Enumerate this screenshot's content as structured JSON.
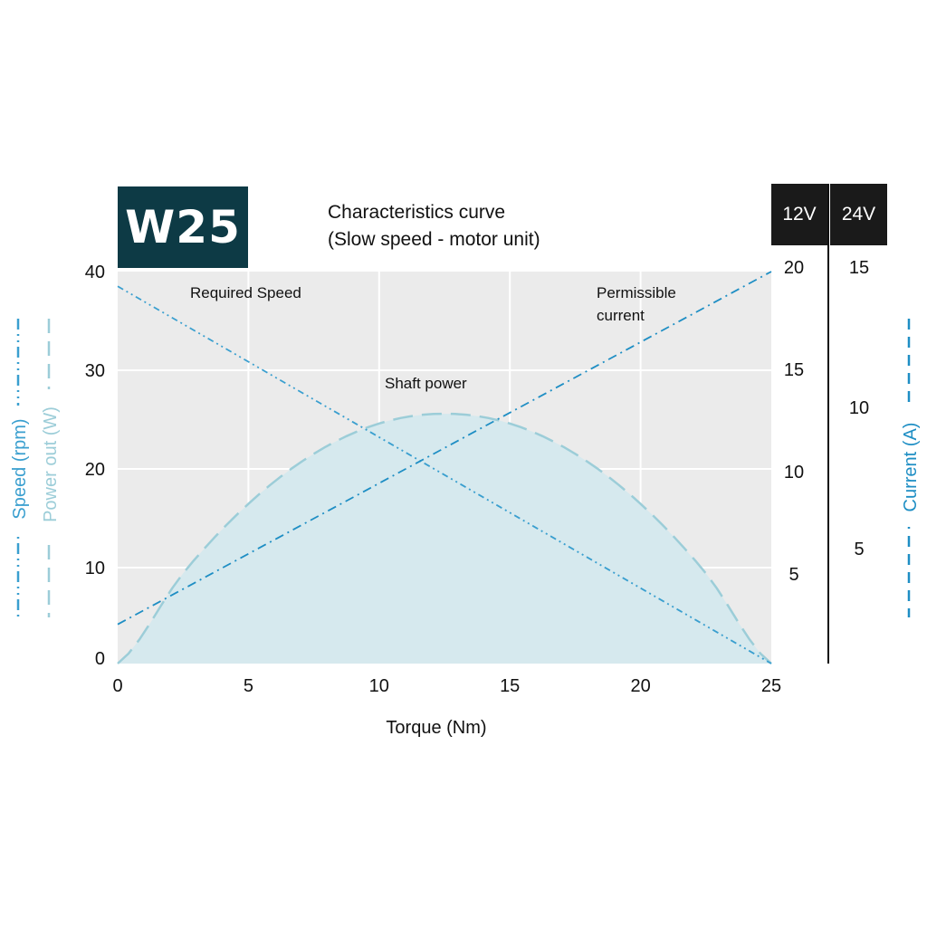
{
  "badge": "W25",
  "title_line1": "Characteristics curve",
  "title_line2": "(Slow speed - motor unit)",
  "voltage_headers": [
    "12V",
    "24V"
  ],
  "colors": {
    "speed": "#3a9fcf",
    "power": "#9ccdd8",
    "power_fill": "#d6e9ee",
    "current": "#1e8ec4",
    "plot_bg": "#ebebeb",
    "badge_bg": "#0d3a45"
  },
  "chart_data": {
    "type": "line",
    "title": "Characteristics curve (Slow speed - motor unit)",
    "xlabel": "Torque (Nm)",
    "xlim": [
      0,
      25
    ],
    "x_ticks": [
      "0",
      "5",
      "10",
      "15",
      "20",
      "25"
    ],
    "left_axis": {
      "labels": [
        "Speed (rpm)",
        "Power out (W)"
      ],
      "ylim": [
        0,
        40
      ],
      "ticks": [
        "0",
        "10",
        "20",
        "30",
        "40"
      ]
    },
    "right_axis_12v": {
      "label": "Current (A)",
      "ylim": [
        0,
        20
      ],
      "ticks": [
        "5",
        "10",
        "15",
        "20"
      ]
    },
    "right_axis_24v": {
      "ticks": [
        "5",
        "10",
        "15"
      ]
    },
    "grid": true,
    "series": [
      {
        "name": "Required Speed",
        "axis": "left",
        "style": "dash-dot",
        "x": [
          0,
          25
        ],
        "y": [
          38.5,
          0
        ]
      },
      {
        "name": "Permissible current",
        "axis": "left",
        "style": "dash-dot",
        "x": [
          0,
          25
        ],
        "y": [
          4,
          40
        ]
      },
      {
        "name": "Shaft power",
        "axis": "left",
        "style": "long-dash",
        "fill": true,
        "x": [
          0,
          2.5,
          5,
          7.5,
          10,
          12.5,
          15,
          17.5,
          20,
          22.5,
          25
        ],
        "y": [
          0,
          9.2,
          16.3,
          21.4,
          24.5,
          25.5,
          24.5,
          21.4,
          16.3,
          9.2,
          0
        ]
      }
    ],
    "annotations": [
      {
        "text": "Required Speed"
      },
      {
        "text": "Permissible"
      },
      {
        "text": "current"
      },
      {
        "text": "Shaft power"
      }
    ]
  }
}
